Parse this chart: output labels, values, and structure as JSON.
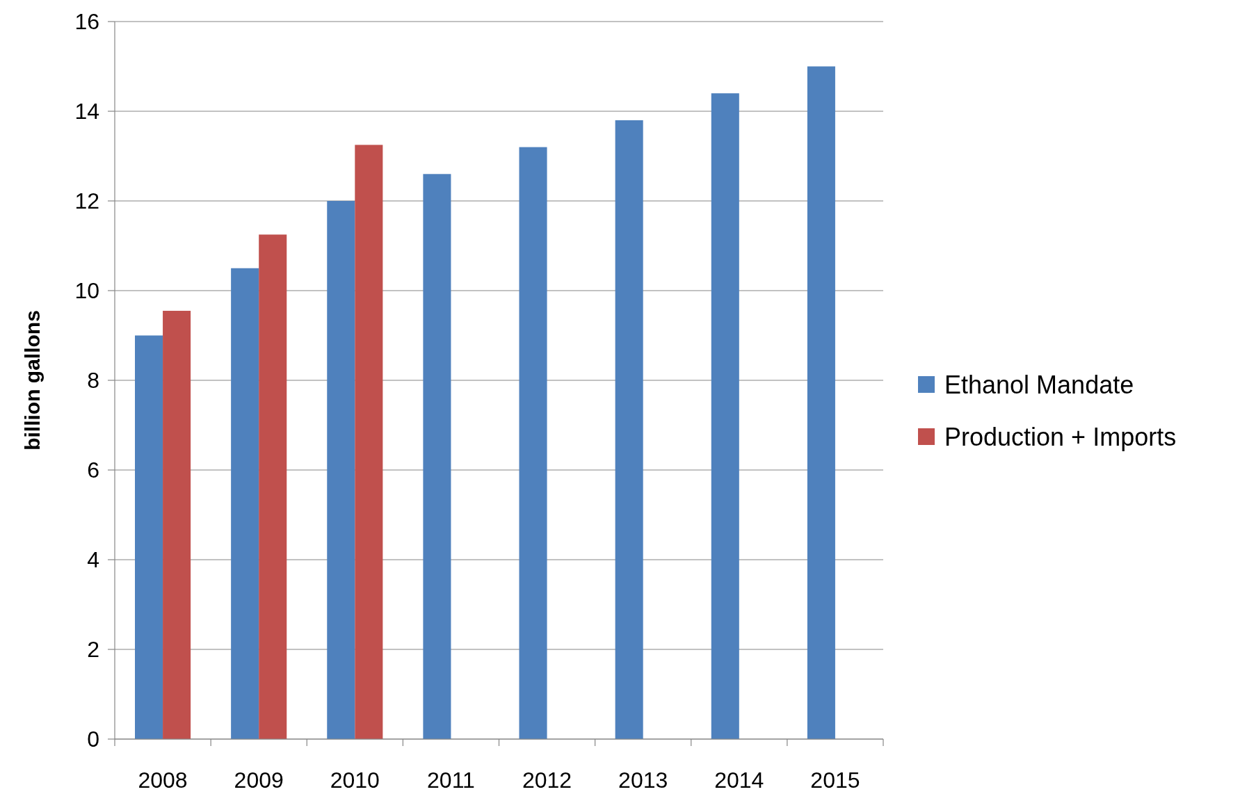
{
  "chart_data": {
    "type": "bar",
    "ylabel": "billion gallons",
    "categories": [
      "2008",
      "2009",
      "2010",
      "2011",
      "2012",
      "2013",
      "2014",
      "2015"
    ],
    "series": [
      {
        "name": "Ethanol Mandate",
        "color": "#4f81bd",
        "values": [
          9,
          10.5,
          12,
          12.6,
          13.2,
          13.8,
          14.4,
          15
        ]
      },
      {
        "name": "Production + Imports",
        "color": "#c0504d",
        "values": [
          9.55,
          11.25,
          13.25,
          null,
          null,
          null,
          null,
          null
        ]
      }
    ],
    "ylim": [
      0,
      16
    ],
    "yticks": [
      0,
      2,
      4,
      6,
      8,
      10,
      12,
      14,
      16
    ],
    "grid": "y",
    "legend": "right"
  }
}
